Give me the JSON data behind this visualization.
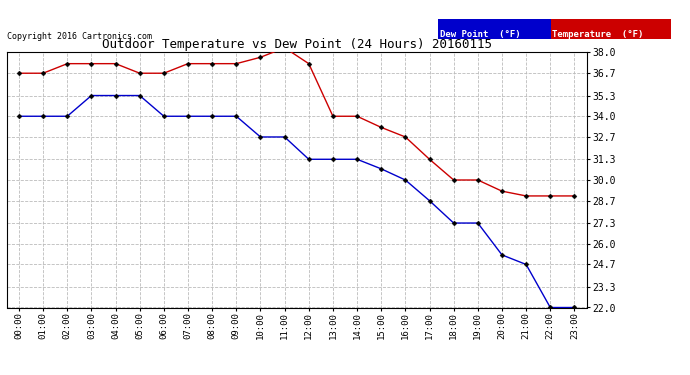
{
  "title": "Outdoor Temperature vs Dew Point (24 Hours) 20160115",
  "copyright": "Copyright 2016 Cartronics.com",
  "background_color": "#ffffff",
  "plot_bg_color": "#ffffff",
  "grid_color": "#bbbbbb",
  "x_labels": [
    "00:00",
    "01:00",
    "02:00",
    "03:00",
    "04:00",
    "05:00",
    "06:00",
    "07:00",
    "08:00",
    "09:00",
    "10:00",
    "11:00",
    "12:00",
    "13:00",
    "14:00",
    "15:00",
    "16:00",
    "17:00",
    "18:00",
    "19:00",
    "20:00",
    "21:00",
    "22:00",
    "23:00"
  ],
  "temperature": [
    36.7,
    36.7,
    37.3,
    37.3,
    37.3,
    36.7,
    36.7,
    37.3,
    37.3,
    37.3,
    37.7,
    38.3,
    37.3,
    34.0,
    34.0,
    33.3,
    32.7,
    31.3,
    30.0,
    30.0,
    29.3,
    29.0,
    29.0,
    29.0
  ],
  "dew_point": [
    34.0,
    34.0,
    34.0,
    35.3,
    35.3,
    35.3,
    34.0,
    34.0,
    34.0,
    34.0,
    32.7,
    32.7,
    31.3,
    31.3,
    31.3,
    30.7,
    30.0,
    28.7,
    27.3,
    27.3,
    25.3,
    24.7,
    22.0,
    22.0
  ],
  "temp_color": "#cc0000",
  "dew_color": "#0000cc",
  "ylim_min": 22.0,
  "ylim_max": 38.0,
  "ytick_values": [
    38.0,
    36.7,
    35.3,
    34.0,
    32.7,
    31.3,
    30.0,
    28.7,
    27.3,
    26.0,
    24.7,
    23.3,
    22.0
  ],
  "legend_dew_bg": "#0000cc",
  "legend_temp_bg": "#cc0000"
}
